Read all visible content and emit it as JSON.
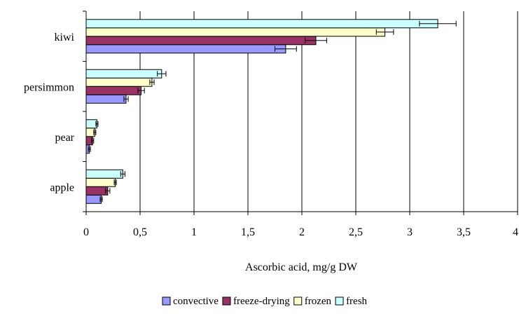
{
  "chart_data": {
    "type": "bar",
    "orientation": "horizontal",
    "categories": [
      "kiwi",
      "persimmon",
      "pear",
      "apple"
    ],
    "series": [
      {
        "name": "convective",
        "color": "#9999FF",
        "values": [
          1.85,
          0.37,
          0.03,
          0.14
        ],
        "errors": [
          0.1,
          0.02,
          0.01,
          0.01
        ]
      },
      {
        "name": "freeze-drying",
        "color": "#993366",
        "values": [
          2.13,
          0.51,
          0.06,
          0.2
        ],
        "errors": [
          0.1,
          0.03,
          0.01,
          0.02
        ]
      },
      {
        "name": "frozen",
        "color": "#FFFFCC",
        "values": [
          2.77,
          0.61,
          0.08,
          0.27
        ],
        "errors": [
          0.08,
          0.02,
          0.01,
          0.01
        ]
      },
      {
        "name": "fresh",
        "color": "#CCFFFF",
        "values": [
          3.26,
          0.7,
          0.1,
          0.34
        ],
        "errors": [
          0.17,
          0.04,
          0.01,
          0.02
        ]
      }
    ],
    "xlabel": "Ascorbic acid, mg/g DW",
    "ylabel": "",
    "xlim": [
      0,
      4
    ],
    "xticks": [
      0,
      0.5,
      1,
      1.5,
      2,
      2.5,
      3,
      3.5,
      4
    ],
    "xtick_labels": [
      "0",
      "0,5",
      "1",
      "1,5",
      "2",
      "2,5",
      "3",
      "3,5",
      "4"
    ],
    "grid": "vertical",
    "legend_position": "bottom"
  }
}
